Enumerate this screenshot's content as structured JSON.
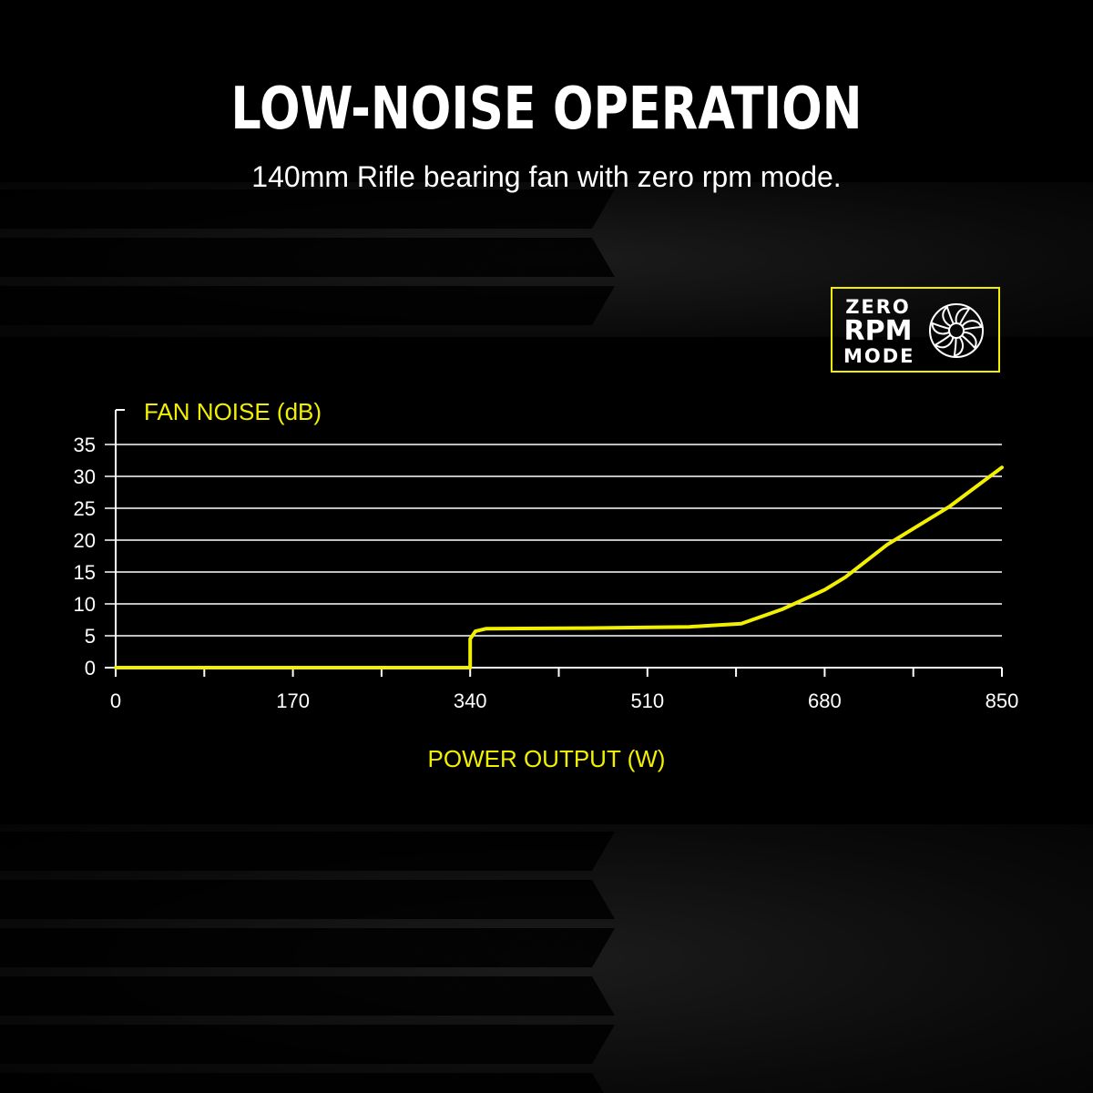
{
  "header": {
    "title": "LOW-NOISE OPERATION",
    "subtitle": "140mm Rifle bearing fan with zero rpm mode."
  },
  "badge": {
    "line1": "ZERO",
    "line2": "RPM",
    "line3": "MODE",
    "icon": "fan-icon"
  },
  "colors": {
    "accent": "#f2ef00",
    "grid": "#ffffff",
    "background": "#000000"
  },
  "chart_data": {
    "type": "line",
    "ylabel": "FAN NOISE (dB)",
    "xlabel": "POWER OUTPUT (W)",
    "xlim": [
      0,
      850
    ],
    "ylim": [
      0,
      35
    ],
    "xticks": [
      0,
      170,
      340,
      510,
      680,
      850
    ],
    "yticks": [
      0,
      5,
      10,
      15,
      20,
      25,
      30,
      35
    ],
    "grid": true,
    "series": [
      {
        "color": "#f2ef00",
        "x": [
          0,
          340,
          340,
          345,
          355,
          450,
          550,
          600,
          640,
          680,
          700,
          740,
          800,
          850
        ],
        "y": [
          0,
          0,
          4.5,
          5.7,
          6.1,
          6.2,
          6.4,
          6.9,
          9.2,
          12.2,
          14.2,
          19.3,
          25.3,
          31.4
        ]
      }
    ]
  }
}
